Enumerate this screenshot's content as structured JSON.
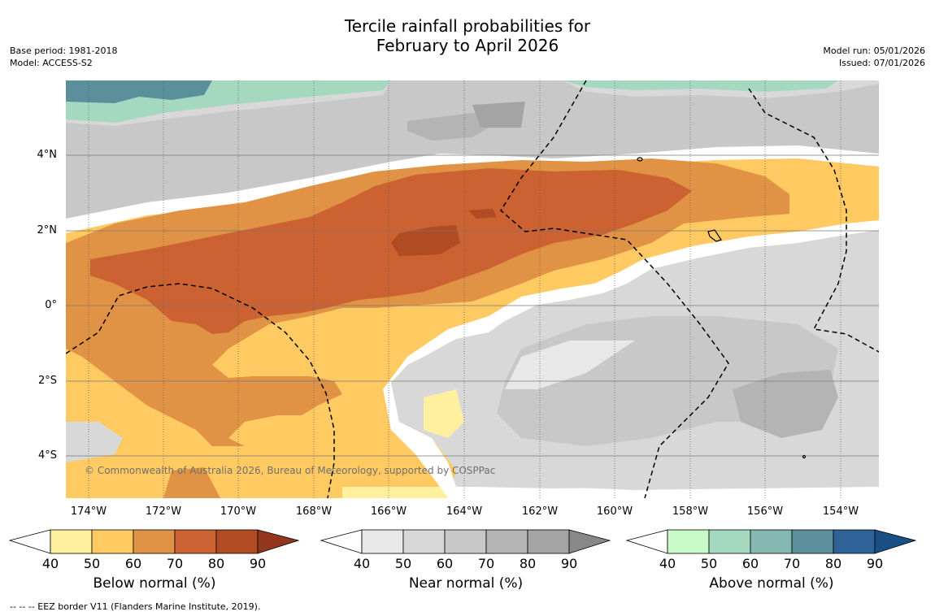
{
  "title": {
    "line1": "Tercile rainfall probabilities for",
    "line2": "February to April 2026"
  },
  "meta": {
    "base_period": "Base period: 1981-2018",
    "model": "Model: ACCESS-S2",
    "model_run": "Model run: 05/01/2026",
    "issued": "Issued: 07/01/2026"
  },
  "map": {
    "lat_labels": [
      "4°N",
      "2°N",
      "0°",
      "2°S",
      "4°S"
    ],
    "lon_labels": [
      "174°W",
      "172°W",
      "170°W",
      "168°W",
      "166°W",
      "164°W",
      "162°W",
      "160°W",
      "158°W",
      "156°W",
      "154°W"
    ],
    "copyright": "© Commonwealth of Australia 2026, Bureau of Meteorology, supported by COSPPac",
    "colors": {
      "below": [
        "#fff0a0",
        "#ffca62",
        "#e09245",
        "#cc6131",
        "#b04b23",
        "#94361e"
      ],
      "near": [
        "#e8e8e8",
        "#d8d8d8",
        "#c8c8c8",
        "#b4b4b4",
        "#a4a4a4",
        "#888888"
      ],
      "above": [
        "#c8fac8",
        "#a4d9c0",
        "#84b8b0",
        "#5c8f9c",
        "#2f6398",
        "#194f85"
      ]
    }
  },
  "legends": {
    "ticks": [
      "40",
      "50",
      "60",
      "70",
      "80",
      "90"
    ],
    "below_title": "Below normal (%)",
    "near_title": "Near normal (%)",
    "above_title": "Above normal (%)"
  },
  "footnote": "--  --  -- EEZ border V11 (Flanders Marine Institute, 2019)."
}
